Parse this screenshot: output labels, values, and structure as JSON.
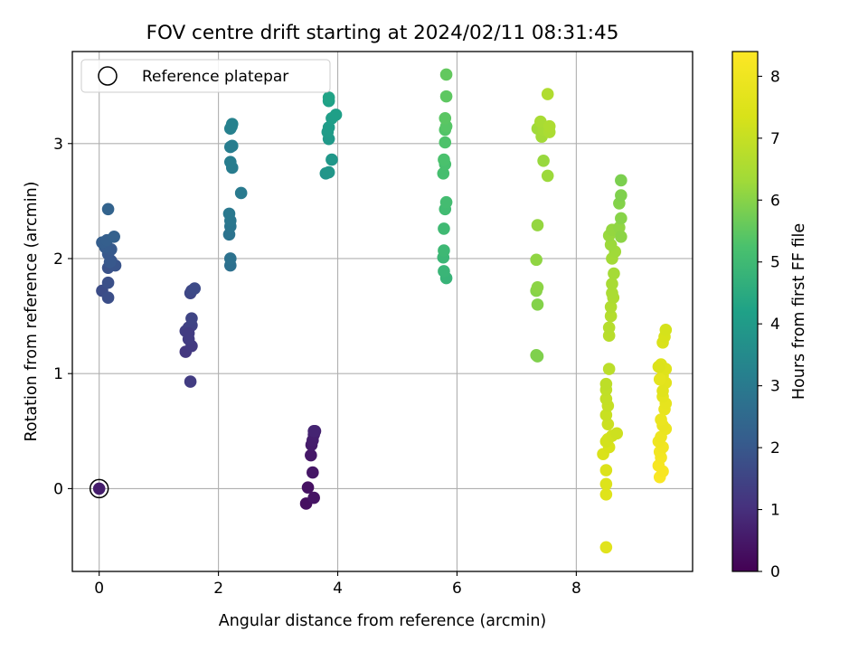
{
  "chart_data": {
    "type": "scatter",
    "title": "FOV centre drift starting at 2024/02/11 08:31:45",
    "xlabel": "Angular distance from reference (arcmin)",
    "ylabel": "Rotation from reference (arcmin)",
    "xlim": [
      -0.45,
      9.95
    ],
    "ylim": [
      -0.72,
      3.8
    ],
    "xticks": [
      0,
      2,
      4,
      6,
      8
    ],
    "yticks": [
      0,
      1,
      2,
      3
    ],
    "grid": true,
    "legend": {
      "position": "top-left",
      "entries": [
        "Reference platepar"
      ]
    },
    "reference_point": {
      "x": 0,
      "y": 0
    },
    "colorbar": {
      "label": "Hours from first FF file",
      "colormap": "viridis",
      "range": [
        0,
        8.4
      ],
      "ticks": [
        0,
        1,
        2,
        3,
        4,
        5,
        6,
        7,
        8
      ]
    },
    "points": [
      {
        "x": 0.0,
        "y": 0.0,
        "h": 0.6
      },
      {
        "x": 3.47,
        "y": -0.13,
        "h": 0.3
      },
      {
        "x": 3.5,
        "y": 0.01,
        "h": 0.35
      },
      {
        "x": 3.6,
        "y": -0.08,
        "h": 0.4
      },
      {
        "x": 3.58,
        "y": 0.14,
        "h": 0.45
      },
      {
        "x": 3.55,
        "y": 0.29,
        "h": 0.5
      },
      {
        "x": 3.56,
        "y": 0.38,
        "h": 0.55
      },
      {
        "x": 3.58,
        "y": 0.42,
        "h": 0.6
      },
      {
        "x": 3.6,
        "y": 0.47,
        "h": 0.65
      },
      {
        "x": 3.62,
        "y": 0.5,
        "h": 0.7
      },
      {
        "x": 3.6,
        "y": 0.5,
        "h": 0.75
      },
      {
        "x": 1.45,
        "y": 1.19,
        "h": 1.2
      },
      {
        "x": 1.55,
        "y": 1.24,
        "h": 1.25
      },
      {
        "x": 1.5,
        "y": 1.3,
        "h": 1.3
      },
      {
        "x": 1.45,
        "y": 1.37,
        "h": 1.35
      },
      {
        "x": 1.5,
        "y": 1.4,
        "h": 1.4
      },
      {
        "x": 1.55,
        "y": 1.42,
        "h": 1.45
      },
      {
        "x": 1.55,
        "y": 1.48,
        "h": 1.5
      },
      {
        "x": 1.53,
        "y": 1.7,
        "h": 1.55
      },
      {
        "x": 1.55,
        "y": 1.72,
        "h": 1.6
      },
      {
        "x": 1.6,
        "y": 1.74,
        "h": 1.65
      },
      {
        "x": 1.53,
        "y": 0.93,
        "h": 1.3
      },
      {
        "x": 1.5,
        "y": 1.35,
        "h": 1.3
      },
      {
        "x": 0.05,
        "y": 1.72,
        "h": 1.7
      },
      {
        "x": 0.15,
        "y": 1.66,
        "h": 1.75
      },
      {
        "x": 0.15,
        "y": 1.79,
        "h": 1.8
      },
      {
        "x": 0.15,
        "y": 1.92,
        "h": 1.85
      },
      {
        "x": 0.27,
        "y": 1.94,
        "h": 1.9
      },
      {
        "x": 0.2,
        "y": 1.98,
        "h": 1.95
      },
      {
        "x": 0.15,
        "y": 2.04,
        "h": 2.0
      },
      {
        "x": 0.2,
        "y": 2.08,
        "h": 2.05
      },
      {
        "x": 0.1,
        "y": 2.1,
        "h": 2.1
      },
      {
        "x": 0.05,
        "y": 2.14,
        "h": 2.15
      },
      {
        "x": 0.13,
        "y": 2.16,
        "h": 2.2
      },
      {
        "x": 0.25,
        "y": 2.19,
        "h": 2.25
      },
      {
        "x": 0.15,
        "y": 2.43,
        "h": 2.3
      },
      {
        "x": 0.18,
        "y": 1.97,
        "h": 2.0
      },
      {
        "x": 2.2,
        "y": 1.94,
        "h": 2.7
      },
      {
        "x": 2.2,
        "y": 2.0,
        "h": 2.75
      },
      {
        "x": 2.18,
        "y": 2.21,
        "h": 2.8
      },
      {
        "x": 2.2,
        "y": 2.28,
        "h": 2.85
      },
      {
        "x": 2.2,
        "y": 2.33,
        "h": 2.9
      },
      {
        "x": 2.18,
        "y": 2.39,
        "h": 2.95
      },
      {
        "x": 2.38,
        "y": 2.57,
        "h": 3.0
      },
      {
        "x": 2.23,
        "y": 2.79,
        "h": 3.05
      },
      {
        "x": 2.2,
        "y": 2.84,
        "h": 3.1
      },
      {
        "x": 2.23,
        "y": 2.98,
        "h": 3.15
      },
      {
        "x": 2.2,
        "y": 3.13,
        "h": 3.2
      },
      {
        "x": 2.23,
        "y": 3.17,
        "h": 3.25
      },
      {
        "x": 2.2,
        "y": 2.97,
        "h": 3.1
      },
      {
        "x": 2.22,
        "y": 3.15,
        "h": 3.2
      },
      {
        "x": 3.8,
        "y": 2.74,
        "h": 3.8
      },
      {
        "x": 3.85,
        "y": 2.75,
        "h": 3.85
      },
      {
        "x": 3.9,
        "y": 2.86,
        "h": 3.9
      },
      {
        "x": 3.85,
        "y": 3.04,
        "h": 3.95
      },
      {
        "x": 3.83,
        "y": 3.1,
        "h": 4.0
      },
      {
        "x": 3.85,
        "y": 3.14,
        "h": 4.05
      },
      {
        "x": 3.9,
        "y": 3.22,
        "h": 4.1
      },
      {
        "x": 3.97,
        "y": 3.25,
        "h": 4.15
      },
      {
        "x": 3.85,
        "y": 3.37,
        "h": 4.2
      },
      {
        "x": 3.85,
        "y": 3.4,
        "h": 4.25
      },
      {
        "x": 5.82,
        "y": 1.83,
        "h": 4.8
      },
      {
        "x": 5.78,
        "y": 1.89,
        "h": 4.85
      },
      {
        "x": 5.77,
        "y": 2.01,
        "h": 4.9
      },
      {
        "x": 5.78,
        "y": 2.07,
        "h": 4.95
      },
      {
        "x": 5.78,
        "y": 2.26,
        "h": 5.0
      },
      {
        "x": 5.8,
        "y": 2.43,
        "h": 5.05
      },
      {
        "x": 5.82,
        "y": 2.49,
        "h": 5.1
      },
      {
        "x": 5.77,
        "y": 2.74,
        "h": 5.15
      },
      {
        "x": 5.8,
        "y": 2.82,
        "h": 5.2
      },
      {
        "x": 5.78,
        "y": 2.86,
        "h": 5.25
      },
      {
        "x": 5.8,
        "y": 3.01,
        "h": 5.3
      },
      {
        "x": 5.8,
        "y": 3.12,
        "h": 5.35
      },
      {
        "x": 5.82,
        "y": 3.15,
        "h": 5.4
      },
      {
        "x": 5.8,
        "y": 3.22,
        "h": 5.45
      },
      {
        "x": 5.82,
        "y": 3.41,
        "h": 5.5
      },
      {
        "x": 5.82,
        "y": 3.6,
        "h": 5.55
      },
      {
        "x": 7.35,
        "y": 1.15,
        "h": 5.9
      },
      {
        "x": 7.33,
        "y": 1.16,
        "h": 5.9
      },
      {
        "x": 7.35,
        "y": 1.6,
        "h": 5.95
      },
      {
        "x": 7.33,
        "y": 1.72,
        "h": 6.0
      },
      {
        "x": 7.35,
        "y": 1.75,
        "h": 6.05
      },
      {
        "x": 7.33,
        "y": 1.99,
        "h": 6.1
      },
      {
        "x": 7.35,
        "y": 2.29,
        "h": 6.15
      },
      {
        "x": 7.45,
        "y": 2.85,
        "h": 6.2
      },
      {
        "x": 7.52,
        "y": 2.72,
        "h": 6.25
      },
      {
        "x": 7.35,
        "y": 3.13,
        "h": 6.3
      },
      {
        "x": 7.42,
        "y": 3.06,
        "h": 6.35
      },
      {
        "x": 7.45,
        "y": 3.12,
        "h": 6.4
      },
      {
        "x": 7.4,
        "y": 3.19,
        "h": 6.45
      },
      {
        "x": 7.55,
        "y": 3.1,
        "h": 6.5
      },
      {
        "x": 7.55,
        "y": 3.15,
        "h": 6.55
      },
      {
        "x": 7.52,
        "y": 3.43,
        "h": 6.6
      },
      {
        "x": 8.5,
        "y": -0.51,
        "h": 7.6
      },
      {
        "x": 8.5,
        "y": -0.05,
        "h": 7.55
      },
      {
        "x": 8.5,
        "y": 0.04,
        "h": 7.5
      },
      {
        "x": 8.5,
        "y": 0.16,
        "h": 7.45
      },
      {
        "x": 8.45,
        "y": 0.3,
        "h": 7.4
      },
      {
        "x": 8.55,
        "y": 0.36,
        "h": 7.35
      },
      {
        "x": 8.53,
        "y": 0.43,
        "h": 7.3
      },
      {
        "x": 8.5,
        "y": 0.41,
        "h": 7.25
      },
      {
        "x": 8.6,
        "y": 0.46,
        "h": 7.2
      },
      {
        "x": 8.68,
        "y": 0.48,
        "h": 7.15
      },
      {
        "x": 8.53,
        "y": 0.56,
        "h": 7.1
      },
      {
        "x": 8.5,
        "y": 0.64,
        "h": 7.05
      },
      {
        "x": 8.53,
        "y": 0.72,
        "h": 7.0
      },
      {
        "x": 8.5,
        "y": 0.78,
        "h": 6.95
      },
      {
        "x": 8.5,
        "y": 0.86,
        "h": 6.9
      },
      {
        "x": 8.5,
        "y": 0.91,
        "h": 6.85
      },
      {
        "x": 8.55,
        "y": 1.04,
        "h": 6.8
      },
      {
        "x": 8.55,
        "y": 1.33,
        "h": 6.75
      },
      {
        "x": 8.55,
        "y": 1.4,
        "h": 6.7
      },
      {
        "x": 8.58,
        "y": 1.5,
        "h": 6.65
      },
      {
        "x": 8.58,
        "y": 1.58,
        "h": 6.6
      },
      {
        "x": 8.62,
        "y": 1.66,
        "h": 6.55
      },
      {
        "x": 8.6,
        "y": 1.7,
        "h": 6.5
      },
      {
        "x": 8.6,
        "y": 1.78,
        "h": 6.45
      },
      {
        "x": 8.63,
        "y": 1.87,
        "h": 6.4
      },
      {
        "x": 8.6,
        "y": 2.0,
        "h": 6.35
      },
      {
        "x": 8.65,
        "y": 2.06,
        "h": 6.3
      },
      {
        "x": 8.58,
        "y": 2.12,
        "h": 6.25
      },
      {
        "x": 8.55,
        "y": 2.2,
        "h": 6.2
      },
      {
        "x": 8.6,
        "y": 2.25,
        "h": 6.15
      },
      {
        "x": 8.72,
        "y": 2.27,
        "h": 6.1
      },
      {
        "x": 8.75,
        "y": 2.19,
        "h": 6.05
      },
      {
        "x": 8.75,
        "y": 2.35,
        "h": 6.0
      },
      {
        "x": 8.72,
        "y": 2.48,
        "h": 5.95
      },
      {
        "x": 8.75,
        "y": 2.55,
        "h": 5.9
      },
      {
        "x": 8.75,
        "y": 2.68,
        "h": 5.85
      },
      {
        "x": 9.4,
        "y": 0.1,
        "h": 8.3
      },
      {
        "x": 9.45,
        "y": 0.15,
        "h": 8.25
      },
      {
        "x": 9.38,
        "y": 0.2,
        "h": 8.2
      },
      {
        "x": 9.42,
        "y": 0.27,
        "h": 8.15
      },
      {
        "x": 9.4,
        "y": 0.32,
        "h": 8.1
      },
      {
        "x": 9.45,
        "y": 0.36,
        "h": 8.05
      },
      {
        "x": 9.38,
        "y": 0.41,
        "h": 8.0
      },
      {
        "x": 9.42,
        "y": 0.45,
        "h": 7.95
      },
      {
        "x": 9.5,
        "y": 0.52,
        "h": 7.9
      },
      {
        "x": 9.45,
        "y": 0.55,
        "h": 7.85
      },
      {
        "x": 9.48,
        "y": 0.69,
        "h": 7.8
      },
      {
        "x": 9.5,
        "y": 0.74,
        "h": 7.75
      },
      {
        "x": 9.45,
        "y": 0.8,
        "h": 7.7
      },
      {
        "x": 9.5,
        "y": 0.92,
        "h": 7.65
      },
      {
        "x": 9.45,
        "y": 0.98,
        "h": 7.6
      },
      {
        "x": 9.5,
        "y": 1.04,
        "h": 7.55
      },
      {
        "x": 9.42,
        "y": 1.08,
        "h": 7.5
      },
      {
        "x": 9.38,
        "y": 1.06,
        "h": 7.45
      },
      {
        "x": 9.45,
        "y": 1.27,
        "h": 7.4
      },
      {
        "x": 9.48,
        "y": 1.32,
        "h": 7.35
      },
      {
        "x": 9.5,
        "y": 1.38,
        "h": 7.3
      },
      {
        "x": 9.45,
        "y": 0.85,
        "h": 7.6
      },
      {
        "x": 9.42,
        "y": 0.6,
        "h": 7.9
      },
      {
        "x": 9.4,
        "y": 0.95,
        "h": 7.7
      }
    ]
  }
}
